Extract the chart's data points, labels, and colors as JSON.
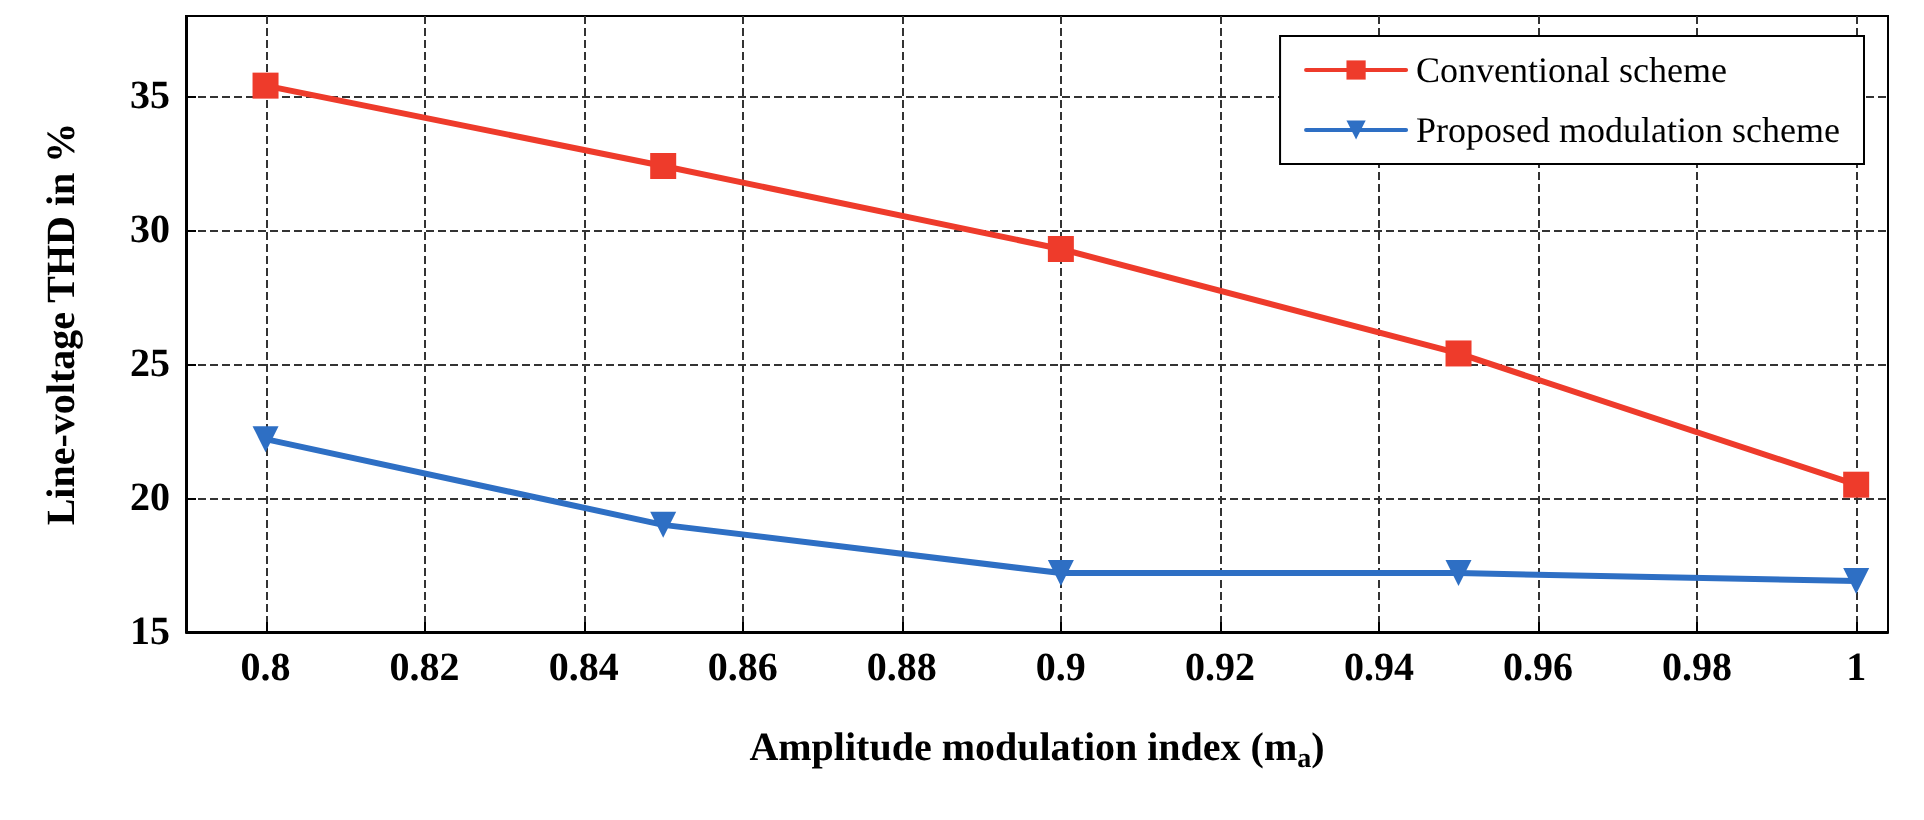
{
  "chart_data": {
    "type": "line",
    "xlabel": "Amplitude modulation index (m$_{a}$)",
    "ylabel": "Line-voltage THD in %",
    "x": [
      0.8,
      0.85,
      0.9,
      0.95,
      1
    ],
    "series": [
      {
        "name": "Conventional scheme",
        "color": "#ee3b2b",
        "marker": "square",
        "values": [
          35.4,
          32.4,
          29.3,
          25.4,
          20.5
        ]
      },
      {
        "name": "Proposed modulation scheme",
        "color": "#2e6fc4",
        "marker": "triangle",
        "values": [
          22.2,
          19.0,
          17.2,
          17.2,
          16.9
        ]
      }
    ],
    "xlim": [
      0.79,
      1.004
    ],
    "xticks": [
      0.8,
      0.82,
      0.84,
      0.86,
      0.88,
      0.9,
      0.92,
      0.94,
      0.96,
      0.98,
      1
    ],
    "ylim": [
      15,
      38
    ],
    "yticks": [
      15,
      20,
      25,
      30,
      35
    ],
    "grid": true,
    "legend": "top right",
    "line_style": "solid"
  }
}
